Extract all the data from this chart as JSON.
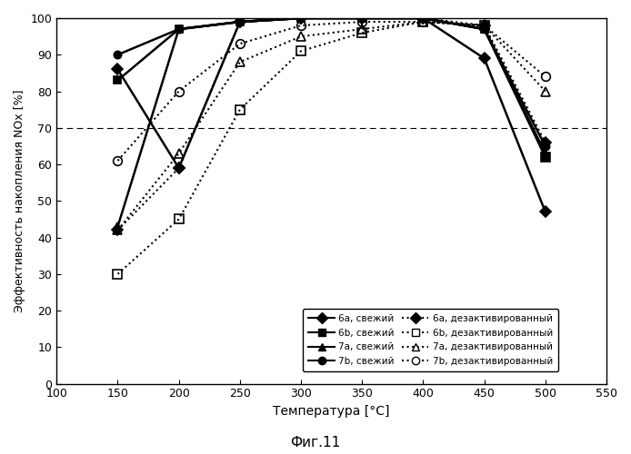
{
  "title": "",
  "xlabel": "Температура [°C]",
  "ylabel": "Эффективность накопления NOx [%]",
  "caption": "Фиг.11",
  "xlim": [
    100,
    550
  ],
  "ylim": [
    0,
    100
  ],
  "xticks": [
    100,
    150,
    200,
    250,
    300,
    350,
    400,
    450,
    500,
    550
  ],
  "yticks": [
    0,
    10,
    20,
    30,
    40,
    50,
    60,
    70,
    80,
    90,
    100
  ],
  "hline_y": 70,
  "series": {
    "6a_fresh": {
      "x": [
        150,
        200,
        250,
        300,
        350,
        400,
        450,
        500
      ],
      "y": [
        86,
        59,
        99,
        100,
        100,
        100,
        89,
        47
      ],
      "color": "#000000",
      "linestyle": "solid",
      "marker": "D",
      "markersize": 6,
      "linewidth": 1.8,
      "label": "6a, свежий",
      "fillstyle": "full"
    },
    "6b_fresh": {
      "x": [
        150,
        200,
        250,
        300,
        350,
        400,
        450,
        500
      ],
      "y": [
        83,
        97,
        99,
        100,
        100,
        100,
        97,
        62
      ],
      "color": "#000000",
      "linestyle": "solid",
      "marker": "s",
      "markersize": 6,
      "linewidth": 1.8,
      "label": "6b, свежий",
      "fillstyle": "full"
    },
    "7a_fresh": {
      "x": [
        150,
        200,
        250,
        300,
        350,
        400,
        450,
        500
      ],
      "y": [
        43,
        97,
        99,
        100,
        100,
        100,
        97,
        63
      ],
      "color": "#000000",
      "linestyle": "solid",
      "marker": "^",
      "markersize": 6,
      "linewidth": 1.8,
      "label": "7a, свежий",
      "fillstyle": "full"
    },
    "7b_fresh": {
      "x": [
        150,
        200,
        250,
        300,
        350,
        400,
        450,
        500
      ],
      "y": [
        90,
        97,
        99,
        100,
        100,
        100,
        97,
        65
      ],
      "color": "#000000",
      "linestyle": "solid",
      "marker": "o",
      "markersize": 6,
      "linewidth": 1.8,
      "label": "7b, свежий",
      "fillstyle": "full"
    },
    "6a_deact": {
      "x": [
        150,
        200,
        250,
        300,
        350,
        400,
        450,
        500
      ],
      "y": [
        42,
        59,
        99,
        100,
        100,
        100,
        98,
        66
      ],
      "color": "#000000",
      "linestyle": "dotted",
      "marker": "D",
      "markersize": 6,
      "linewidth": 1.5,
      "label": "6a, дезактивированный",
      "fillstyle": "full"
    },
    "6b_deact": {
      "x": [
        150,
        200,
        250,
        300,
        350,
        400,
        450,
        500
      ],
      "y": [
        30,
        45,
        75,
        91,
        96,
        99,
        98,
        62
      ],
      "color": "#000000",
      "linestyle": "dotted",
      "marker": "s",
      "markersize": 7,
      "linewidth": 1.5,
      "label": "6b, дезактивированный",
      "fillstyle": "none"
    },
    "7a_deact": {
      "x": [
        150,
        200,
        250,
        300,
        350,
        400,
        450,
        500
      ],
      "y": [
        42,
        63,
        88,
        95,
        97,
        99,
        98,
        80
      ],
      "color": "#000000",
      "linestyle": "dotted",
      "marker": "^",
      "markersize": 7,
      "linewidth": 1.5,
      "label": "7a, дезактивированный",
      "fillstyle": "none"
    },
    "7b_deact": {
      "x": [
        150,
        200,
        250,
        300,
        350,
        400,
        450,
        500
      ],
      "y": [
        61,
        80,
        93,
        98,
        99,
        99,
        98,
        84
      ],
      "color": "#000000",
      "linestyle": "dotted",
      "marker": "o",
      "markersize": 7,
      "linewidth": 1.5,
      "label": "7b, дезактивированный",
      "fillstyle": "none"
    }
  },
  "legend_left": [
    {
      "label": "6a, свежий",
      "marker": "D",
      "fillstyle": "full",
      "ls": "solid"
    },
    {
      "label": "6b, свежий",
      "marker": "s",
      "fillstyle": "full",
      "ls": "solid"
    },
    {
      "label": "7a, свежий",
      "marker": "^",
      "fillstyle": "full",
      "ls": "solid"
    },
    {
      "label": "7b, свежий",
      "marker": "o",
      "fillstyle": "full",
      "ls": "solid"
    }
  ],
  "legend_right": [
    {
      "label": "6a, дезактивированный",
      "marker": "D",
      "fillstyle": "full",
      "ls": "dotted"
    },
    {
      "label": "6b, дезактивированный",
      "marker": "s",
      "fillstyle": "none",
      "ls": "dotted"
    },
    {
      "label": "7a, дезактивированный",
      "marker": "^",
      "fillstyle": "none",
      "ls": "dotted"
    },
    {
      "label": "7b, дезактивированный",
      "marker": "o",
      "fillstyle": "none",
      "ls": "dotted"
    }
  ],
  "background_color": "#ffffff"
}
